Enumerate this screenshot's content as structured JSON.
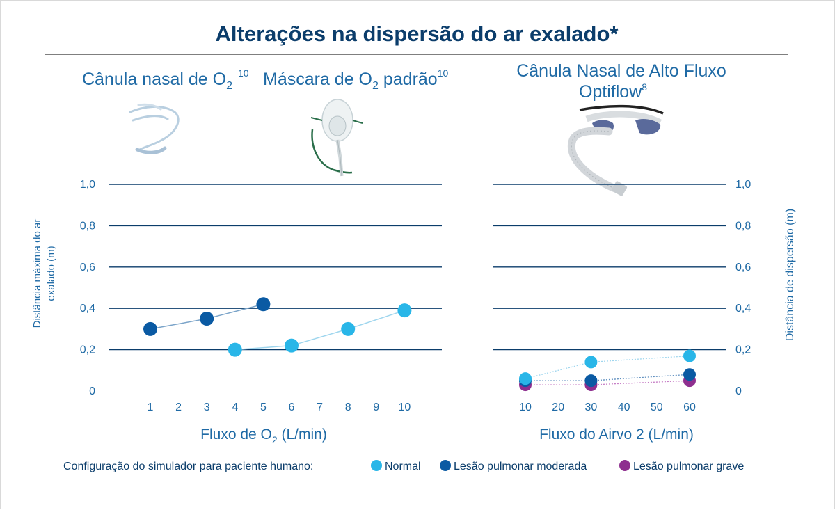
{
  "title": "Alterações na dispersão do ar exalado*",
  "devices": [
    {
      "label_prefix": "Cânula nasal de O",
      "label_sub": "2",
      "label_ref": "10"
    },
    {
      "label_prefix": "Máscara de O",
      "label_sub": "2",
      "label_suffix": " padrão",
      "label_ref": "10"
    },
    {
      "label_line1": "Cânula Nasal de Alto Fluxo",
      "label_line2": "Optiflow",
      "label_ref": "8"
    }
  ],
  "legend": {
    "heading": "Configuração do simulador para paciente humano:",
    "items": [
      {
        "name": "Normal",
        "color": "#29b6e8"
      },
      {
        "name": "Lesão pulmonar moderada",
        "color": "#0a5aa3"
      },
      {
        "name": "Lesão pulmonar grave",
        "color": "#8e2f8f"
      }
    ]
  },
  "colors": {
    "title": "#0b3d6b",
    "axis_text": "#1f6aa5",
    "gridline": "#0b3d6b"
  },
  "chart_data": [
    {
      "type": "scatter",
      "xlabel_prefix": "Fluxo de O",
      "xlabel_sub": "2",
      "xlabel_suffix": " (L/min)",
      "ylabel_line1": "Distância máxima do ar",
      "ylabel_line2": "exalado (m)",
      "x_ticks": [
        "1",
        "2",
        "3",
        "4",
        "5",
        "6",
        "7",
        "8",
        "9",
        "10"
      ],
      "y_ticks": [
        "0",
        "0,2",
        "0,4",
        "0,6",
        "0,8",
        "1,0"
      ],
      "ylim": [
        0,
        1.0
      ],
      "grid": true,
      "series": [
        {
          "name": "Lesão pulmonar moderada",
          "color": "#0a5aa3",
          "line_color": "#7ba4c9",
          "x": [
            1,
            3,
            5
          ],
          "y": [
            0.3,
            0.35,
            0.42
          ]
        },
        {
          "name": "Normal",
          "color": "#29b6e8",
          "line_color": "#9fd6ee",
          "x": [
            4,
            6,
            8,
            10
          ],
          "y": [
            0.2,
            0.22,
            0.3,
            0.39
          ]
        }
      ]
    },
    {
      "type": "scatter",
      "xlabel": "Fluxo do Airvo 2 (L/min)",
      "ylabel": "Distância de dispersão (m)",
      "x_ticks": [
        "10",
        "20",
        "30",
        "40",
        "50",
        "60"
      ],
      "y_ticks": [
        "0",
        "0,2",
        "0,4",
        "0,6",
        "0,8",
        "1,0"
      ],
      "ylim": [
        0,
        1.0
      ],
      "grid": true,
      "series": [
        {
          "name": "Lesão pulmonar grave",
          "color": "#8e2f8f",
          "line_color": "#c77fc6",
          "x": [
            10,
            30,
            60
          ],
          "y": [
            0.03,
            0.03,
            0.05
          ]
        },
        {
          "name": "Lesão pulmonar moderada",
          "color": "#0a5aa3",
          "line_color": "#5f8fbf",
          "x": [
            10,
            30,
            60
          ],
          "y": [
            0.05,
            0.05,
            0.08
          ]
        },
        {
          "name": "Normal",
          "color": "#29b6e8",
          "line_color": "#9fd6ee",
          "x": [
            10,
            30,
            60
          ],
          "y": [
            0.06,
            0.14,
            0.17
          ]
        }
      ]
    }
  ]
}
